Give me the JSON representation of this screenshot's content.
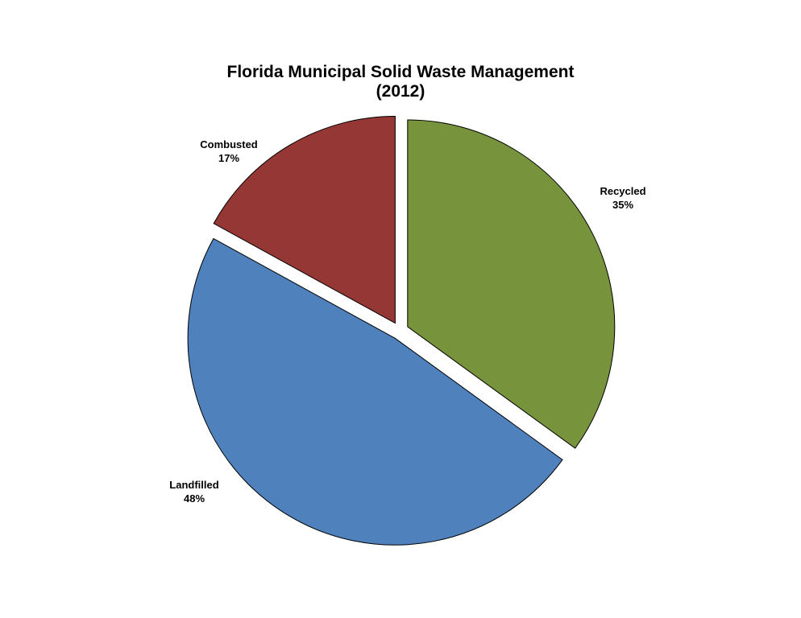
{
  "chart_data": {
    "type": "pie",
    "title": "Florida Municipal Solid Waste Management",
    "subtitle": "(2012)",
    "categories": [
      "Recycled",
      "Landfilled",
      "Combusted"
    ],
    "values": [
      35,
      48,
      17
    ],
    "value_labels": [
      "35%",
      "48%",
      "17%"
    ],
    "colors": [
      "#77933C",
      "#4F81BD",
      "#953735"
    ],
    "legend": "none",
    "exploded": true
  }
}
